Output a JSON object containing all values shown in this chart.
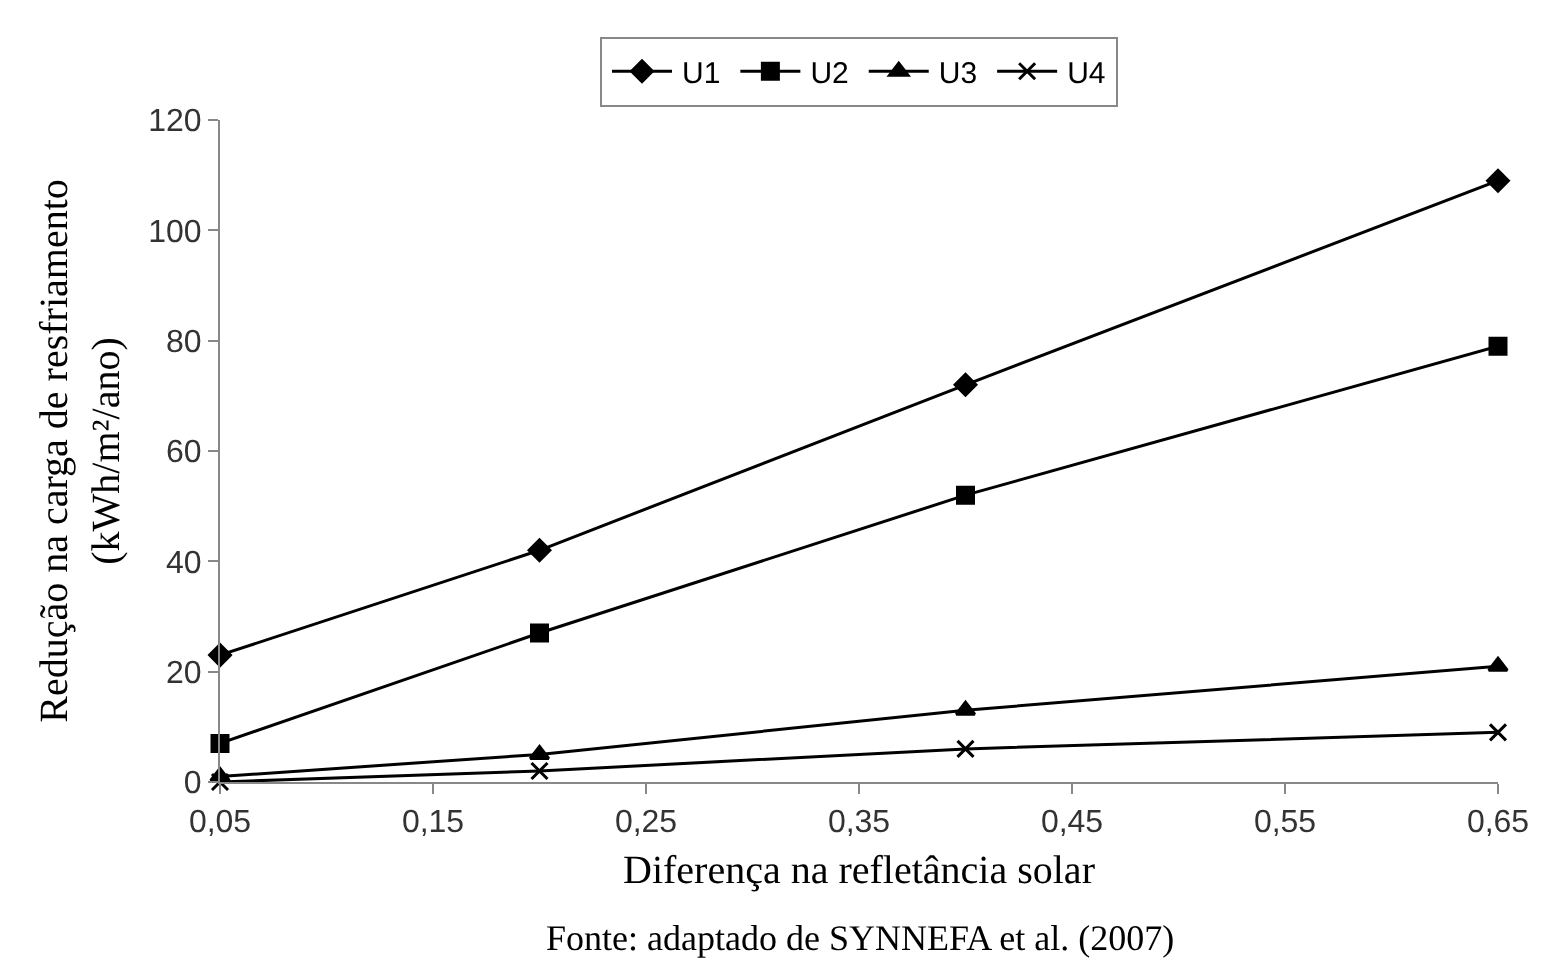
{
  "chart_data": {
    "type": "line",
    "xlabel": "Diferença na refletância solar",
    "ylabel": "Redução na carga de resfriamento (kWh/m²/ano)",
    "annotations": [
      "Fonte: adaptado de SYNNEFA et al. (2007)"
    ],
    "x": [
      0.05,
      0.2,
      0.4,
      0.65
    ],
    "series": [
      {
        "name": "U1",
        "color": "#000000",
        "marker": "diamond",
        "values": [
          23,
          42,
          72,
          109
        ]
      },
      {
        "name": "U2",
        "color": "#000000",
        "marker": "square",
        "values": [
          7,
          27,
          52,
          79
        ]
      },
      {
        "name": "U3",
        "color": "#000000",
        "marker": "triangle",
        "values": [
          1,
          5,
          13,
          21
        ]
      },
      {
        "name": "U4",
        "color": "#000000",
        "marker": "cross",
        "values": [
          0,
          2,
          6,
          9
        ]
      }
    ],
    "xlim": [
      0.05,
      0.65
    ],
    "xticks": [
      {
        "value": 0.05,
        "label": "0,05"
      },
      {
        "value": 0.15,
        "label": "0,15"
      },
      {
        "value": 0.25,
        "label": "0,25"
      },
      {
        "value": 0.35,
        "label": "0,35"
      },
      {
        "value": 0.45,
        "label": "0,45"
      },
      {
        "value": 0.55,
        "label": "0,55"
      },
      {
        "value": 0.65,
        "label": "0,65"
      }
    ],
    "ylim": [
      0,
      120
    ],
    "yticks": [
      0,
      20,
      40,
      60,
      80,
      100,
      120
    ],
    "legend": "top",
    "line_style": "solid"
  }
}
